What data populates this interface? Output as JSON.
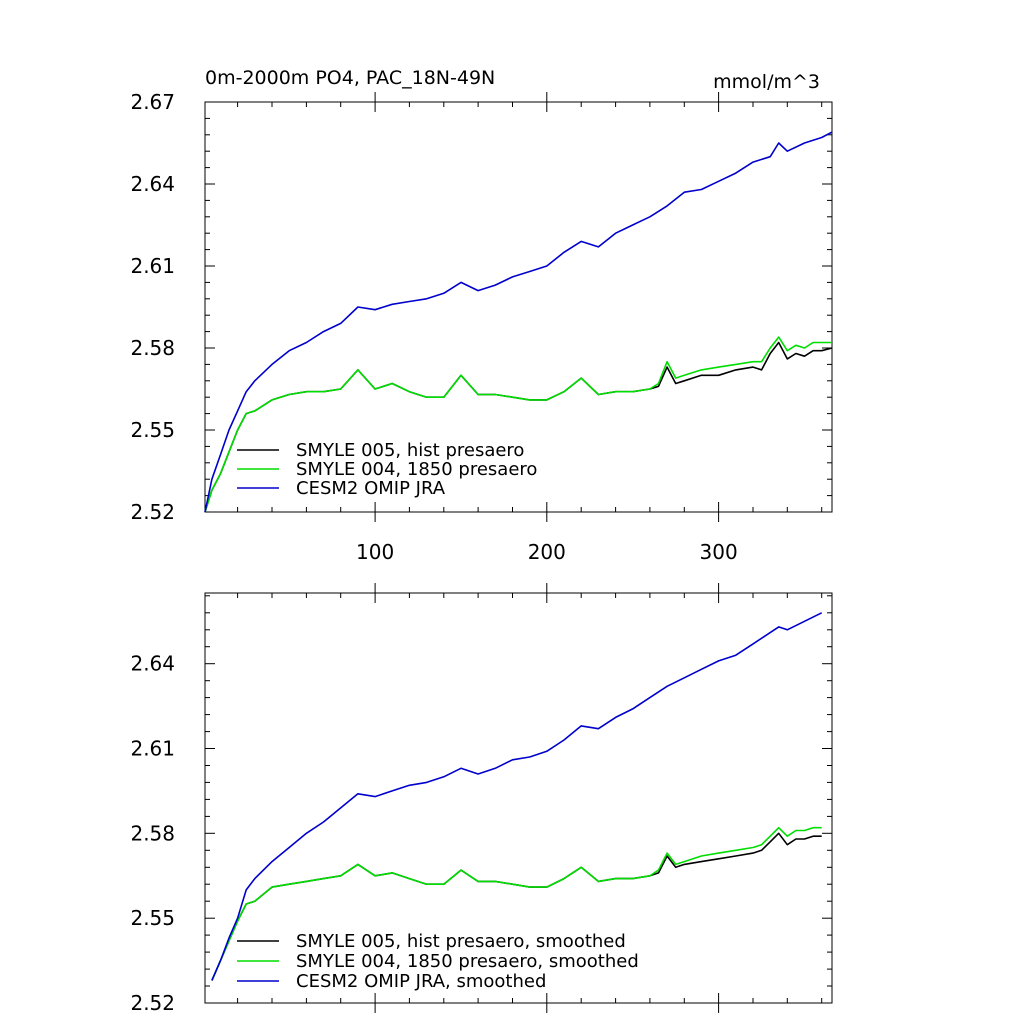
{
  "chart_data": [
    {
      "type": "line",
      "title": "0m-2000m PO4, PAC_18N-49N",
      "units": "mmol/m^3",
      "xlim": [
        1,
        366
      ],
      "ylim": [
        2.52,
        2.67
      ],
      "xticks": [
        100,
        200,
        300
      ],
      "xtick_labels": [
        "100",
        "200",
        "300"
      ],
      "yticks": [
        2.52,
        2.55,
        2.58,
        2.61,
        2.64,
        2.67
      ],
      "ytick_labels": [
        "2.52",
        "2.55",
        "2.58",
        "2.61",
        "2.64",
        "2.67"
      ],
      "grid": false,
      "legend_position": "bottom-left",
      "series": [
        {
          "name": "SMYLE 005, hist presaero",
          "color": "#000000",
          "x": [
            1,
            5,
            10,
            15,
            20,
            25,
            30,
            40,
            50,
            60,
            70,
            80,
            90,
            100,
            110,
            120,
            130,
            140,
            150,
            160,
            170,
            180,
            190,
            200,
            210,
            220,
            230,
            240,
            250,
            260,
            265,
            270,
            275,
            280,
            290,
            300,
            310,
            320,
            325,
            330,
            335,
            340,
            345,
            350,
            355,
            360,
            366
          ],
          "y": [
            2.52,
            2.528,
            2.534,
            2.542,
            2.55,
            2.556,
            2.557,
            2.561,
            2.563,
            2.564,
            2.564,
            2.565,
            2.572,
            2.565,
            2.567,
            2.564,
            2.562,
            2.562,
            2.57,
            2.563,
            2.563,
            2.562,
            2.561,
            2.561,
            2.564,
            2.569,
            2.563,
            2.564,
            2.564,
            2.565,
            2.566,
            2.573,
            2.567,
            2.568,
            2.57,
            2.57,
            2.572,
            2.573,
            2.572,
            2.578,
            2.582,
            2.576,
            2.578,
            2.577,
            2.579,
            2.579,
            2.58
          ]
        },
        {
          "name": "SMYLE 004, 1850 presaero",
          "color": "#00dd00",
          "x": [
            1,
            5,
            10,
            15,
            20,
            25,
            30,
            40,
            50,
            60,
            70,
            80,
            90,
            100,
            110,
            120,
            130,
            140,
            150,
            160,
            170,
            180,
            190,
            200,
            210,
            220,
            230,
            240,
            250,
            260,
            265,
            270,
            275,
            280,
            290,
            300,
            310,
            320,
            325,
            330,
            335,
            340,
            345,
            350,
            355,
            360,
            366
          ],
          "y": [
            2.52,
            2.528,
            2.534,
            2.542,
            2.55,
            2.556,
            2.557,
            2.561,
            2.563,
            2.564,
            2.564,
            2.565,
            2.572,
            2.565,
            2.567,
            2.564,
            2.562,
            2.562,
            2.57,
            2.563,
            2.563,
            2.562,
            2.561,
            2.561,
            2.564,
            2.569,
            2.563,
            2.564,
            2.564,
            2.565,
            2.567,
            2.575,
            2.569,
            2.57,
            2.572,
            2.573,
            2.574,
            2.575,
            2.575,
            2.58,
            2.584,
            2.579,
            2.581,
            2.58,
            2.582,
            2.582,
            2.582
          ]
        },
        {
          "name": "CESM2 OMIP JRA",
          "color": "#0000cc",
          "x": [
            1,
            5,
            10,
            15,
            20,
            25,
            30,
            40,
            50,
            60,
            70,
            80,
            90,
            100,
            110,
            120,
            130,
            140,
            150,
            160,
            170,
            180,
            190,
            200,
            210,
            220,
            230,
            240,
            250,
            260,
            270,
            280,
            290,
            300,
            310,
            320,
            330,
            335,
            340,
            350,
            360,
            366
          ],
          "y": [
            2.52,
            2.532,
            2.541,
            2.55,
            2.557,
            2.564,
            2.568,
            2.574,
            2.579,
            2.582,
            2.586,
            2.589,
            2.595,
            2.594,
            2.596,
            2.597,
            2.598,
            2.6,
            2.604,
            2.601,
            2.603,
            2.606,
            2.608,
            2.61,
            2.615,
            2.619,
            2.617,
            2.622,
            2.625,
            2.628,
            2.632,
            2.637,
            2.638,
            2.641,
            2.644,
            2.648,
            2.65,
            2.655,
            2.652,
            2.655,
            2.657,
            2.659
          ]
        }
      ]
    },
    {
      "type": "line",
      "xlim": [
        1,
        366
      ],
      "ylim": [
        2.52,
        2.665
      ],
      "xticks": [
        100,
        200,
        300
      ],
      "yticks": [
        2.52,
        2.55,
        2.58,
        2.61,
        2.64
      ],
      "ytick_labels": [
        "2.52",
        "2.55",
        "2.58",
        "2.61",
        "2.64"
      ],
      "grid": false,
      "legend_position": "bottom-left",
      "series": [
        {
          "name": "SMYLE 005, hist presaero, smoothed",
          "color": "#000000",
          "x": [
            5,
            10,
            15,
            20,
            25,
            30,
            40,
            50,
            60,
            70,
            80,
            90,
            100,
            110,
            120,
            130,
            140,
            150,
            160,
            170,
            180,
            190,
            200,
            210,
            220,
            230,
            240,
            250,
            260,
            265,
            270,
            275,
            280,
            290,
            300,
            310,
            320,
            325,
            330,
            335,
            340,
            345,
            350,
            355,
            360
          ],
          "y": [
            2.528,
            2.535,
            2.542,
            2.549,
            2.555,
            2.556,
            2.561,
            2.562,
            2.563,
            2.564,
            2.565,
            2.569,
            2.565,
            2.566,
            2.564,
            2.562,
            2.562,
            2.567,
            2.563,
            2.563,
            2.562,
            2.561,
            2.561,
            2.564,
            2.568,
            2.563,
            2.564,
            2.564,
            2.565,
            2.566,
            2.572,
            2.568,
            2.569,
            2.57,
            2.571,
            2.572,
            2.573,
            2.574,
            2.577,
            2.58,
            2.576,
            2.578,
            2.578,
            2.579,
            2.579
          ]
        },
        {
          "name": "SMYLE 004, 1850 presaero, smoothed",
          "color": "#00dd00",
          "x": [
            5,
            10,
            15,
            20,
            25,
            30,
            40,
            50,
            60,
            70,
            80,
            90,
            100,
            110,
            120,
            130,
            140,
            150,
            160,
            170,
            180,
            190,
            200,
            210,
            220,
            230,
            240,
            250,
            260,
            265,
            270,
            275,
            280,
            290,
            300,
            310,
            320,
            325,
            330,
            335,
            340,
            345,
            350,
            355,
            360
          ],
          "y": [
            2.528,
            2.535,
            2.542,
            2.549,
            2.555,
            2.556,
            2.561,
            2.562,
            2.563,
            2.564,
            2.565,
            2.569,
            2.565,
            2.566,
            2.564,
            2.562,
            2.562,
            2.567,
            2.563,
            2.563,
            2.562,
            2.561,
            2.561,
            2.564,
            2.568,
            2.563,
            2.564,
            2.564,
            2.565,
            2.567,
            2.573,
            2.569,
            2.57,
            2.572,
            2.573,
            2.574,
            2.575,
            2.576,
            2.579,
            2.582,
            2.579,
            2.581,
            2.581,
            2.582,
            2.582
          ]
        },
        {
          "name": "CESM2 OMIP JRA, smoothed",
          "color": "#0000cc",
          "x": [
            5,
            10,
            15,
            20,
            25,
            30,
            40,
            50,
            60,
            70,
            80,
            90,
            100,
            110,
            120,
            130,
            140,
            150,
            160,
            170,
            180,
            190,
            200,
            210,
            220,
            230,
            240,
            250,
            260,
            270,
            280,
            290,
            300,
            310,
            320,
            330,
            335,
            340,
            350,
            360
          ],
          "y": [
            2.528,
            2.535,
            2.543,
            2.55,
            2.56,
            2.564,
            2.57,
            2.575,
            2.58,
            2.584,
            2.589,
            2.594,
            2.593,
            2.595,
            2.597,
            2.598,
            2.6,
            2.603,
            2.601,
            2.603,
            2.606,
            2.607,
            2.609,
            2.613,
            2.618,
            2.617,
            2.621,
            2.624,
            2.628,
            2.632,
            2.635,
            2.638,
            2.641,
            2.643,
            2.647,
            2.651,
            2.653,
            2.652,
            2.655,
            2.658
          ]
        }
      ]
    }
  ]
}
